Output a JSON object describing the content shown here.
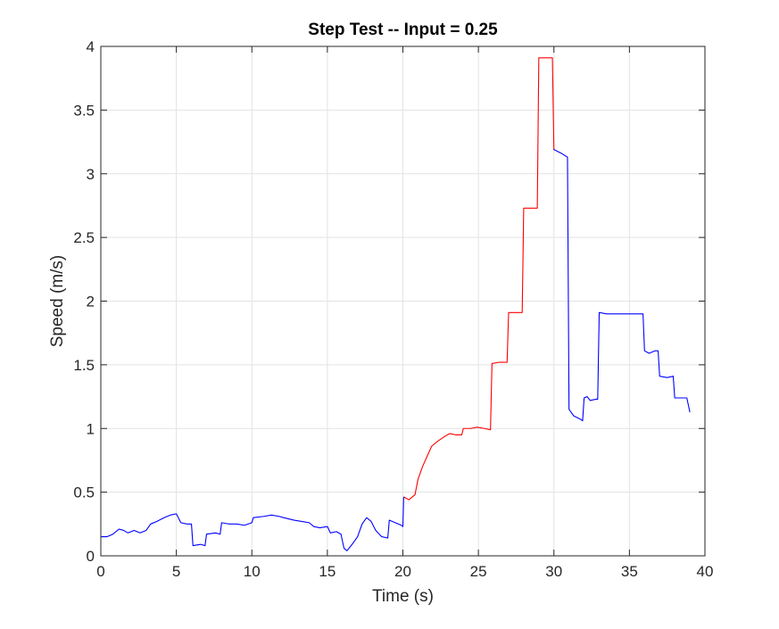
{
  "chart_data": {
    "type": "line",
    "title": "Step Test -- Input = 0.25",
    "xlabel": "Time (s)",
    "ylabel": "Speed (m/s)",
    "xlim": [
      0,
      40
    ],
    "ylim": [
      0,
      4
    ],
    "x_ticks": [
      0,
      5,
      10,
      15,
      20,
      25,
      30,
      35,
      40
    ],
    "y_ticks": [
      0,
      0.5,
      1,
      1.5,
      2,
      2.5,
      3,
      3.5,
      4
    ],
    "x_tick_labels": [
      "0",
      "5",
      "10",
      "15",
      "20",
      "25",
      "30",
      "35",
      "40"
    ],
    "y_tick_labels": [
      "0",
      "0.5",
      "1",
      "1.5",
      "2",
      "2.5",
      "3",
      "3.5",
      "4"
    ],
    "grid": true,
    "series": [
      {
        "color": "#0000ff",
        "points": [
          [
            0,
            0.15
          ],
          [
            0.4,
            0.15
          ],
          [
            0.8,
            0.17
          ],
          [
            1.2,
            0.21
          ],
          [
            1.5,
            0.2
          ],
          [
            1.8,
            0.18
          ],
          [
            2.2,
            0.2
          ],
          [
            2.6,
            0.18
          ],
          [
            3.0,
            0.2
          ],
          [
            3.3,
            0.25
          ],
          [
            3.7,
            0.27
          ],
          [
            4.2,
            0.3
          ],
          [
            4.6,
            0.32
          ],
          [
            5.0,
            0.33
          ],
          [
            5.3,
            0.26
          ],
          [
            5.7,
            0.25
          ],
          [
            6.0,
            0.25
          ],
          [
            6.1,
            0.08
          ],
          [
            6.6,
            0.09
          ],
          [
            6.9,
            0.08
          ],
          [
            7.0,
            0.17
          ],
          [
            7.6,
            0.18
          ],
          [
            7.9,
            0.17
          ],
          [
            8.0,
            0.26
          ],
          [
            8.5,
            0.25
          ],
          [
            9.0,
            0.25
          ],
          [
            9.5,
            0.24
          ],
          [
            10.0,
            0.26
          ],
          [
            10.1,
            0.3
          ],
          [
            10.8,
            0.31
          ],
          [
            11.3,
            0.32
          ],
          [
            11.8,
            0.31
          ],
          [
            12.1,
            0.3
          ],
          [
            12.8,
            0.28
          ],
          [
            13.3,
            0.27
          ],
          [
            13.8,
            0.26
          ],
          [
            14.1,
            0.23
          ],
          [
            14.5,
            0.22
          ],
          [
            15.0,
            0.23
          ],
          [
            15.2,
            0.18
          ],
          [
            15.6,
            0.19
          ],
          [
            15.9,
            0.17
          ],
          [
            16.1,
            0.06
          ],
          [
            16.3,
            0.04
          ],
          [
            16.7,
            0.1
          ],
          [
            17.0,
            0.15
          ],
          [
            17.3,
            0.25
          ],
          [
            17.6,
            0.3
          ],
          [
            17.9,
            0.27
          ],
          [
            18.2,
            0.2
          ],
          [
            18.6,
            0.15
          ],
          [
            19.0,
            0.14
          ],
          [
            19.1,
            0.28
          ],
          [
            19.5,
            0.26
          ],
          [
            19.9,
            0.24
          ],
          [
            20.0,
            0.23
          ],
          [
            20.05,
            0.46
          ],
          [
            20.1,
            0.46
          ]
        ]
      },
      {
        "color": "#ff0000",
        "points": [
          [
            20.1,
            0.46
          ],
          [
            20.4,
            0.44
          ],
          [
            20.8,
            0.48
          ],
          [
            21.0,
            0.6
          ],
          [
            21.3,
            0.7
          ],
          [
            21.6,
            0.78
          ],
          [
            21.9,
            0.86
          ],
          [
            22.3,
            0.9
          ],
          [
            22.8,
            0.94
          ],
          [
            23.1,
            0.96
          ],
          [
            23.5,
            0.95
          ],
          [
            23.9,
            0.95
          ],
          [
            24.0,
            1.0
          ],
          [
            24.5,
            1.0
          ],
          [
            24.9,
            1.01
          ],
          [
            25.4,
            1.0
          ],
          [
            25.8,
            0.99
          ],
          [
            25.9,
            1.51
          ],
          [
            26.4,
            1.52
          ],
          [
            26.9,
            1.52
          ],
          [
            27.0,
            1.91
          ],
          [
            27.5,
            1.91
          ],
          [
            27.9,
            1.91
          ],
          [
            28.0,
            2.73
          ],
          [
            28.5,
            2.73
          ],
          [
            28.9,
            2.73
          ],
          [
            29.0,
            3.91
          ],
          [
            29.5,
            3.91
          ],
          [
            29.9,
            3.91
          ],
          [
            30.0,
            3.19
          ]
        ]
      },
      {
        "color": "#0000ff",
        "points": [
          [
            30.0,
            3.19
          ],
          [
            30.5,
            3.16
          ],
          [
            30.9,
            3.13
          ],
          [
            31.0,
            1.15
          ],
          [
            31.3,
            1.1
          ],
          [
            31.8,
            1.07
          ],
          [
            31.9,
            1.06
          ],
          [
            32.0,
            1.24
          ],
          [
            32.2,
            1.25
          ],
          [
            32.4,
            1.22
          ],
          [
            32.8,
            1.23
          ],
          [
            32.9,
            1.23
          ],
          [
            33.0,
            1.91
          ],
          [
            33.5,
            1.9
          ],
          [
            34.0,
            1.9
          ],
          [
            35.0,
            1.9
          ],
          [
            35.9,
            1.9
          ],
          [
            36.0,
            1.61
          ],
          [
            36.3,
            1.59
          ],
          [
            36.7,
            1.61
          ],
          [
            36.9,
            1.61
          ],
          [
            37.0,
            1.41
          ],
          [
            37.5,
            1.4
          ],
          [
            37.9,
            1.41
          ],
          [
            38.0,
            1.24
          ],
          [
            38.5,
            1.24
          ],
          [
            38.8,
            1.24
          ],
          [
            39.0,
            1.13
          ]
        ]
      }
    ]
  }
}
